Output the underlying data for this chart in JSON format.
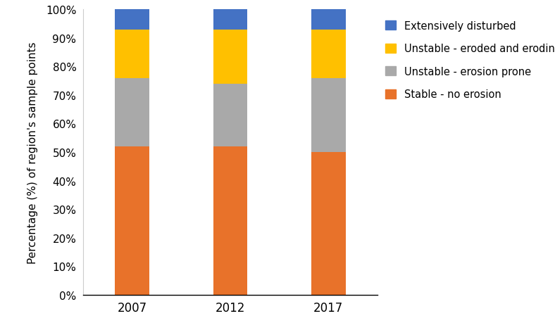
{
  "categories": [
    "2007",
    "2012",
    "2017"
  ],
  "stable": [
    52,
    52,
    50
  ],
  "erosion_prone": [
    24,
    22,
    26
  ],
  "eroded_eroding": [
    17,
    19,
    17
  ],
  "extensively_disturbed": [
    7,
    7,
    7
  ],
  "colors": {
    "stable": "#E8722A",
    "erosion_prone": "#A9A9A9",
    "eroded_eroding": "#FFC000",
    "extensively_disturbed": "#4472C4"
  },
  "legend_labels": [
    "Extensively disturbed",
    "Unstable - eroded and eroding",
    "Unstable - erosion prone",
    "Stable - no erosion"
  ],
  "ylabel": "Percentage (%) of region's sample points",
  "ytick_labels": [
    "0%",
    "10%",
    "20%",
    "30%",
    "40%",
    "50%",
    "60%",
    "70%",
    "80%",
    "90%",
    "100%"
  ],
  "bar_width": 0.35,
  "background_color": "#ffffff",
  "figsize": [
    7.88,
    4.77
  ],
  "dpi": 100
}
